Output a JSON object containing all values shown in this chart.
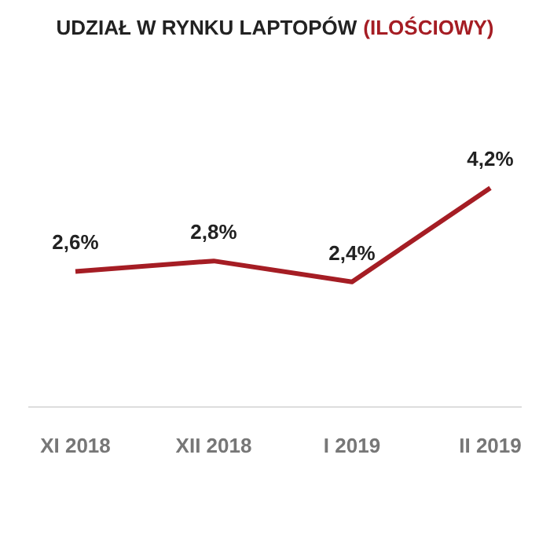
{
  "chart_data": {
    "type": "line",
    "title": "UDZIAŁ W RYNKU LAPTOPÓW",
    "subtitle": "(ILOŚCIOWY)",
    "categories": [
      "XI 2018",
      "XII 2018",
      "I 2019",
      "II 2019"
    ],
    "series": [
      {
        "color": "#a51d24",
        "values": [
          2.6,
          2.8,
          2.4,
          4.2
        ],
        "value_labels": [
          "2,6%",
          "2,8%",
          "2,4%",
          "4,2%"
        ]
      }
    ],
    "tick_labels": "x",
    "marker": "none",
    "line_style": "solid"
  }
}
